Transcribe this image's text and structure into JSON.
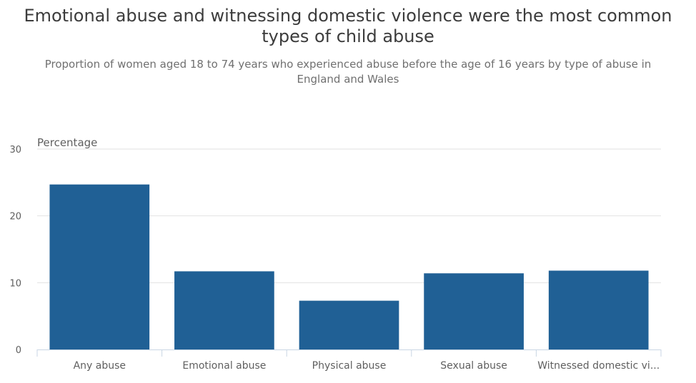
{
  "chart_data": {
    "type": "bar",
    "title": "Emotional abuse and witnessing domestic violence were the most common types of child abuse",
    "subtitle": "Proportion of women aged 18 to 74 years who experienced abuse before the age of 16 years by type of abuse in England and Wales",
    "ylabel": "Percentage",
    "xlabel": "",
    "categories": [
      "Any abuse",
      "Emotional abuse",
      "Physical abuse",
      "Sexual abuse",
      "Witnessed domestic vi..."
    ],
    "values": [
      24.7,
      11.7,
      7.3,
      11.4,
      11.8
    ],
    "ylim": [
      0,
      30
    ],
    "yticks": [
      "0",
      "10",
      "20",
      "30"
    ],
    "grid": true,
    "legend": "none",
    "colors": {
      "bar": "#206095",
      "grid": "#e2e2e2",
      "axis": "#c9d6e4",
      "tick_text": "#5f5f5f"
    }
  }
}
